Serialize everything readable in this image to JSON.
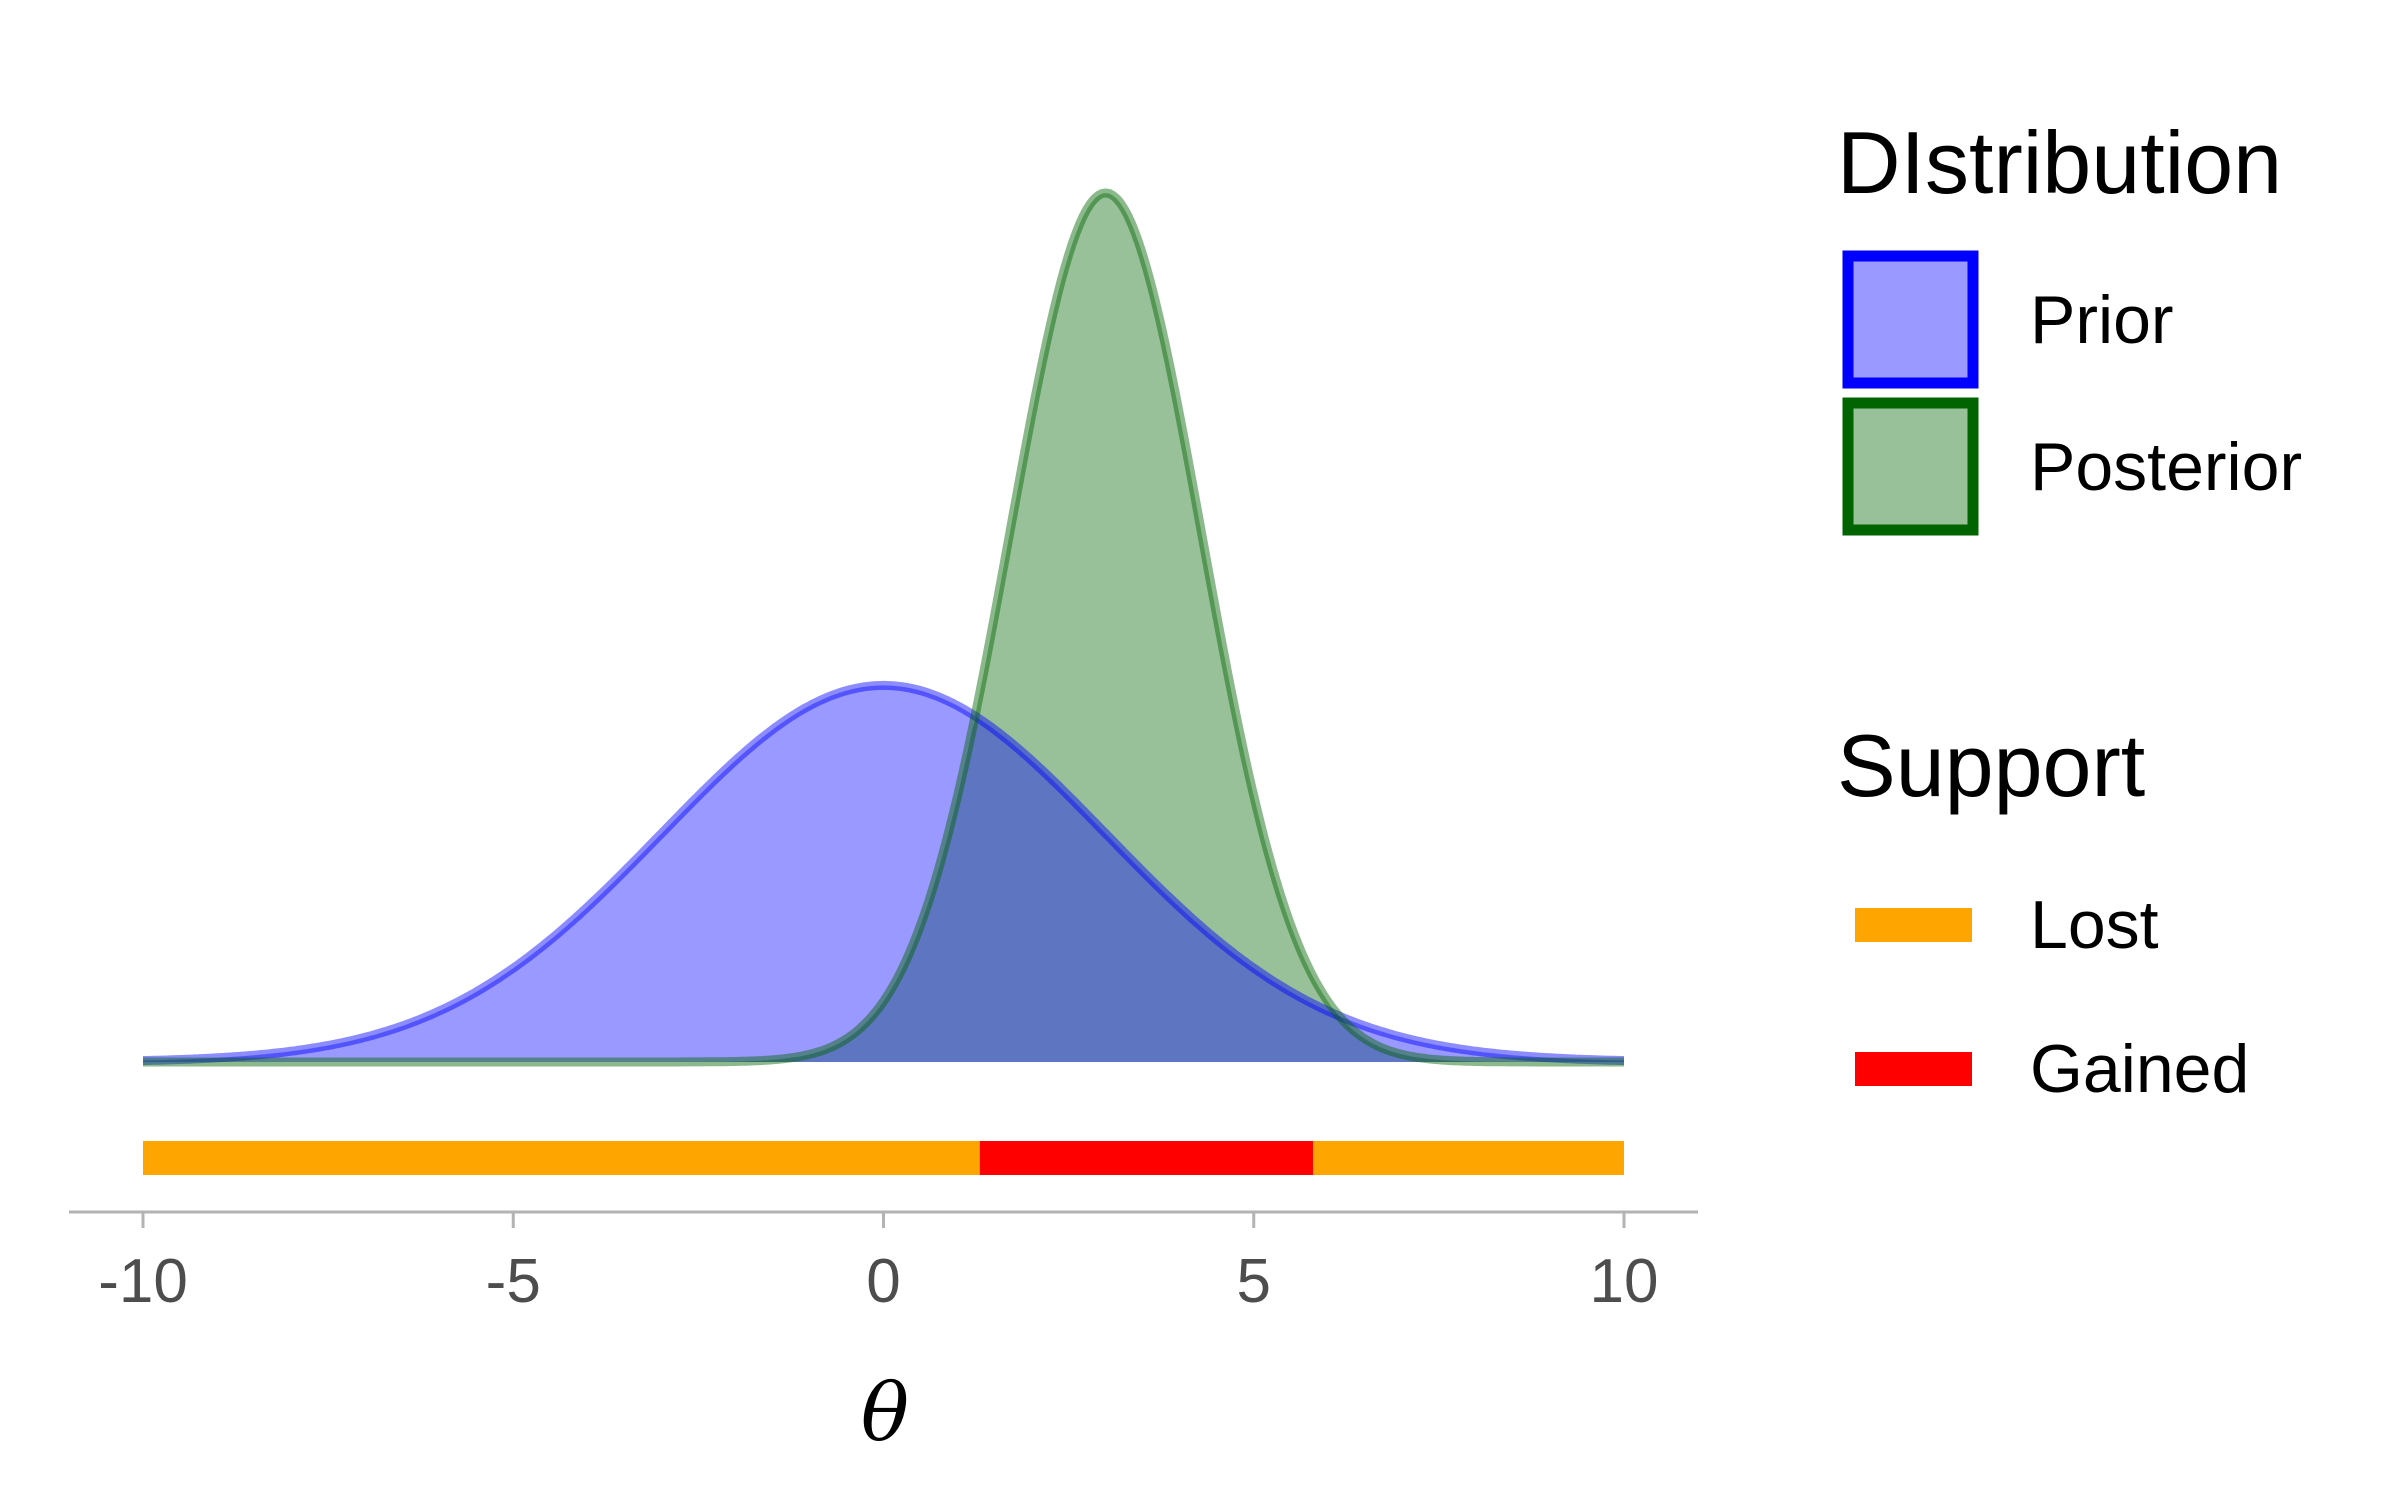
{
  "chart_data": {
    "type": "area",
    "xlabel": "θ",
    "xlim": [
      -10,
      10
    ],
    "x_ticks": [
      "-10",
      "-5",
      "0",
      "5",
      "10"
    ],
    "x_tick_values": [
      -10,
      -5,
      0,
      5,
      10
    ],
    "series": [
      {
        "name": "Prior",
        "distribution": "normal",
        "mean": 0,
        "sd": 3,
        "fill": "#9999ff",
        "stroke": "#0000ff"
      },
      {
        "name": "Posterior",
        "distribution": "normal",
        "mean": 3,
        "sd": 1.3,
        "fill": "#99c199",
        "stroke": "#006400"
      }
    ],
    "support_bar": [
      {
        "from": -10,
        "to": 1.3,
        "category": "Lost"
      },
      {
        "from": 1.3,
        "to": 5.8,
        "category": "Gained"
      },
      {
        "from": 5.8,
        "to": 10,
        "category": "Lost"
      }
    ],
    "overlap_color": "#5e75c1",
    "legend_placement": "right",
    "grid": false
  },
  "legend": {
    "distribution_title": "DIstribution",
    "distribution_items": [
      {
        "label": "Prior",
        "fill": "#9999ff",
        "stroke": "#0000ff"
      },
      {
        "label": "Posterior",
        "fill": "#99c199",
        "stroke": "#006400"
      }
    ],
    "support_title": "Support",
    "support_items": [
      {
        "label": "Lost",
        "color": "#ffa500"
      },
      {
        "label": "Gained",
        "color": "#ff0000"
      }
    ]
  }
}
